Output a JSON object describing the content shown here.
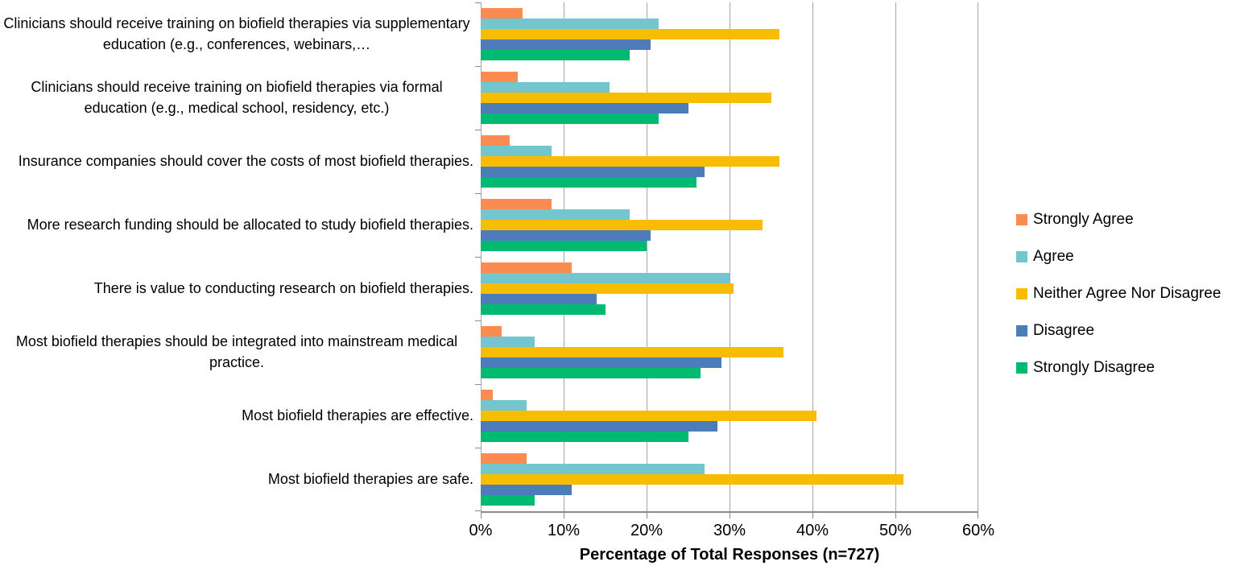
{
  "chart_data": {
    "type": "bar",
    "orientation": "horizontal",
    "title": "",
    "xlabel": "Percentage of Total Responses (n=727)",
    "ylabel": "",
    "xlim": [
      0,
      60
    ],
    "xticks": [
      "0%",
      "10%",
      "20%",
      "30%",
      "40%",
      "50%",
      "60%"
    ],
    "grid": true,
    "legend_position": "right",
    "categories": [
      "Clinicians should receive training on biofield therapies via supplementary education (e.g., conferences, webinars,…",
      "Clinicians should receive training on biofield therapies via formal education (e.g., medical school, residency, etc.)",
      "Insurance companies should cover the costs of most biofield therapies.",
      "More research funding should be allocated to study biofield therapies.",
      "There is value to conducting research on biofield therapies.",
      "Most biofield therapies should be integrated into mainstream medical practice.",
      "Most biofield therapies are effective.",
      "Most biofield therapies are safe."
    ],
    "series": [
      {
        "name": "Strongly Agree",
        "color": "#FA8C51",
        "values": [
          5,
          4.5,
          3.5,
          8.5,
          11,
          2.5,
          1.5,
          5.5
        ]
      },
      {
        "name": "Agree",
        "color": "#73C6CE",
        "values": [
          21.5,
          15.5,
          8.5,
          18,
          30,
          6.5,
          5.5,
          27
        ]
      },
      {
        "name": "Neither Agree Nor Disagree",
        "color": "#F6BD02",
        "values": [
          36,
          35,
          36,
          34,
          30.5,
          36.5,
          40.5,
          51
        ]
      },
      {
        "name": "Disagree",
        "color": "#4C7DB9",
        "values": [
          20.5,
          25,
          27,
          20.5,
          14,
          29,
          28.5,
          11
        ]
      },
      {
        "name": "Strongly Disagree",
        "color": "#00BA71",
        "values": [
          18,
          21.5,
          26,
          20,
          15,
          26.5,
          25,
          6.5
        ]
      }
    ]
  },
  "colors": {
    "gridline": "#A6A6A6",
    "axis_line": "#8C8C8C",
    "text": "#000000",
    "background": "#FFFFFF"
  }
}
